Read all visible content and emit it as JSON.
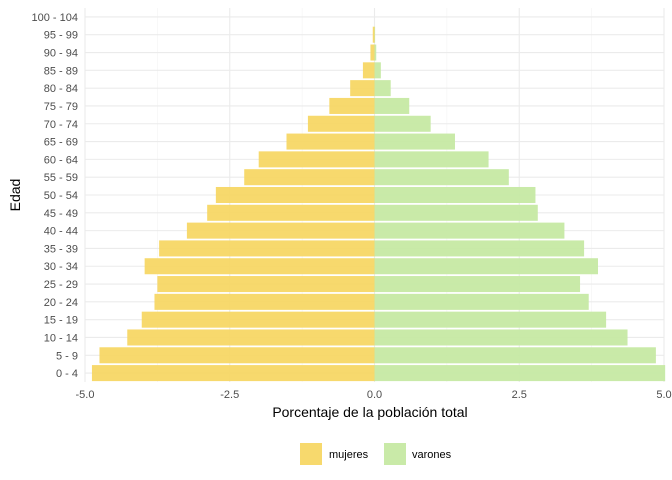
{
  "chart_data": {
    "type": "bar",
    "orientation": "horizontal",
    "title": "",
    "xlabel": "Porcentaje de la población total",
    "ylabel": "Edad",
    "xlim": [
      -5.0,
      5.0
    ],
    "x_ticks": [
      -5.0,
      -2.5,
      0.0,
      2.5,
      5.0
    ],
    "x_tick_labels": [
      "-5.0",
      "-2.5",
      "0.0",
      "2.5",
      "5.0"
    ],
    "grid": true,
    "legend_position": "bottom",
    "categories": [
      "0 - 4",
      "5 - 9",
      "10 - 14",
      "15 - 19",
      "20 - 24",
      "25 - 29",
      "30 - 34",
      "35 - 39",
      "40 - 44",
      "45 - 49",
      "50 - 54",
      "55 - 59",
      "60 - 64",
      "65 - 69",
      "70 - 74",
      "75 - 79",
      "80 - 84",
      "85 - 89",
      "90 - 94",
      "95 - 99",
      "100 - 104"
    ],
    "series": [
      {
        "name": "mujeres",
        "color": "#f7d765",
        "values": [
          -4.88,
          -4.75,
          -4.27,
          -4.02,
          -3.8,
          -3.75,
          -3.97,
          -3.72,
          -3.24,
          -2.89,
          -2.74,
          -2.25,
          -2.0,
          -1.52,
          -1.15,
          -0.78,
          -0.42,
          -0.2,
          -0.07,
          -0.03,
          0.0
        ]
      },
      {
        "name": "varones",
        "color": "#c6e9a3",
        "values": [
          5.02,
          4.86,
          4.37,
          4.0,
          3.7,
          3.55,
          3.86,
          3.62,
          3.28,
          2.82,
          2.78,
          2.32,
          1.97,
          1.39,
          0.97,
          0.6,
          0.28,
          0.11,
          0.03,
          0.01,
          0.0
        ]
      }
    ]
  }
}
